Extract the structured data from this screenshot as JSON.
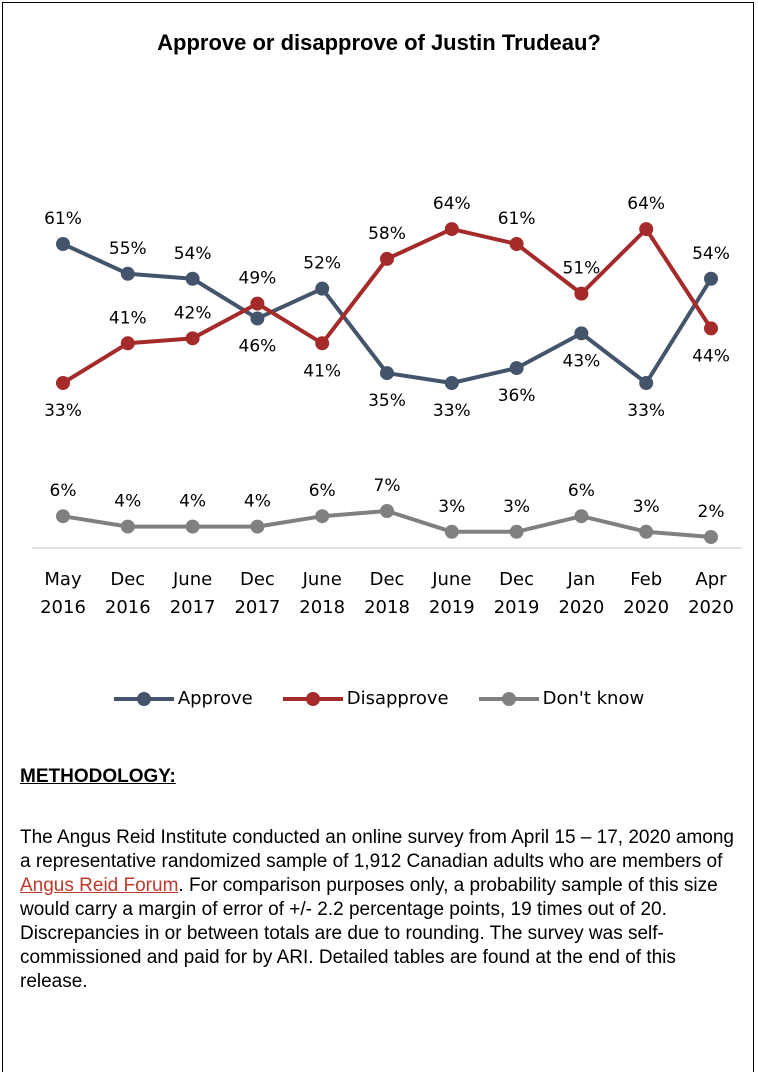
{
  "chart_data": {
    "type": "line",
    "title": "Approve or disapprove of Justin Trudeau?",
    "categories": [
      [
        "May",
        "2016"
      ],
      [
        "Dec",
        "2016"
      ],
      [
        "June",
        "2017"
      ],
      [
        "Dec",
        "2017"
      ],
      [
        "June",
        "2018"
      ],
      [
        "Dec",
        "2018"
      ],
      [
        "June",
        "2019"
      ],
      [
        "Dec",
        "2019"
      ],
      [
        "Jan",
        "2020"
      ],
      [
        "Feb",
        "2020"
      ],
      [
        "Apr",
        "2020"
      ]
    ],
    "series": [
      {
        "name": "Approve",
        "color": "#44546a",
        "values": [
          61,
          55,
          54,
          46,
          52,
          35,
          33,
          36,
          43,
          33,
          54
        ]
      },
      {
        "name": "Disapprove",
        "color": "#a52a2a",
        "values": [
          33,
          41,
          42,
          49,
          41,
          58,
          64,
          61,
          51,
          64,
          44
        ]
      },
      {
        "name": "Don't know",
        "color": "#808080",
        "values": [
          6,
          4,
          4,
          4,
          6,
          7,
          3,
          3,
          6,
          3,
          2
        ]
      }
    ],
    "value_suffix": "%",
    "legend_position": "bottom",
    "grid": false
  },
  "methodology": {
    "heading": "METHODOLOGY:",
    "text_before_link": "The Angus Reid Institute conducted an online survey from April 15 – 17, 2020 among a representative randomized sample of 1,912 Canadian adults who are members of ",
    "link_text": "Angus Reid Forum",
    "text_after_link": ". For comparison purposes only, a probability sample of this size would carry a margin of error of +/- 2.2 percentage points, 19 times out of 20. Discrepancies in or between totals are due to rounding. The survey was self-commissioned and paid for by ARI. Detailed tables are found at the end of this release."
  }
}
